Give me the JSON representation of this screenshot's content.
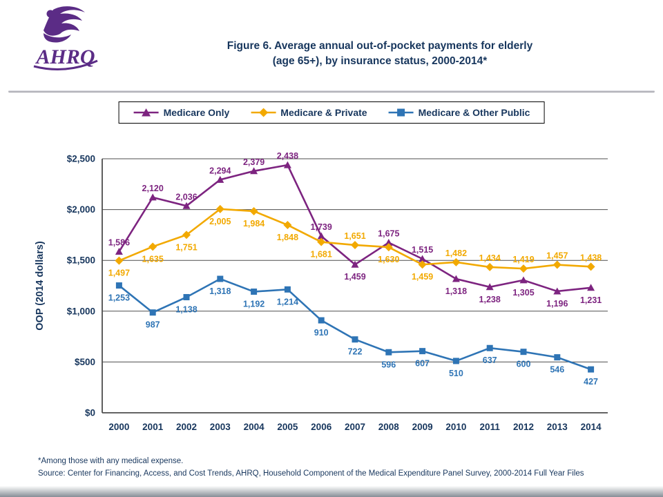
{
  "header": {
    "title_line1": "Figure 6. Average annual out-of-pocket payments for elderly",
    "title_line2": "(age 65+), by insurance status, 2000-2014*",
    "logo_text": "AHRQ"
  },
  "colors": {
    "navy_text": "#17365D",
    "purple_series": "#7D2480",
    "gold_series": "#F2A900",
    "blue_series": "#2E74B5",
    "logo_purple": "#5B2C86"
  },
  "legend": [
    {
      "label": "Medicare Only",
      "marker": "triangle",
      "color": "#7D2480"
    },
    {
      "label": "Medicare & Private",
      "marker": "diamond",
      "color": "#F2A900"
    },
    {
      "label": "Medicare & Other Public",
      "marker": "square",
      "color": "#2E74B5"
    }
  ],
  "chart_data": {
    "type": "line",
    "x": [
      2000,
      2001,
      2002,
      2003,
      2004,
      2005,
      2006,
      2007,
      2008,
      2009,
      2010,
      2011,
      2012,
      2013,
      2014
    ],
    "series": [
      {
        "name": "Medicare Only",
        "marker": "triangle",
        "color": "#7D2480",
        "values": [
          1586,
          2120,
          2036,
          2294,
          2379,
          2438,
          1739,
          1459,
          1675,
          1515,
          1318,
          1238,
          1305,
          1196,
          1231
        ]
      },
      {
        "name": "Medicare & Private",
        "marker": "diamond",
        "color": "#F2A900",
        "values": [
          1497,
          1635,
          1751,
          2005,
          1984,
          1848,
          1681,
          1651,
          1630,
          1459,
          1482,
          1434,
          1419,
          1457,
          1438
        ]
      },
      {
        "name": "Medicare & Other Public",
        "marker": "square",
        "color": "#2E74B5",
        "values": [
          1253,
          987,
          1138,
          1318,
          1192,
          1214,
          910,
          722,
          596,
          607,
          510,
          637,
          600,
          546,
          427
        ]
      }
    ],
    "xlabel": "",
    "ylabel": "OOP (2014 dollars)",
    "ylim": [
      0,
      2500
    ],
    "ytick_step": 500,
    "ytick_labels": [
      "$0",
      "$500",
      "$1,000",
      "$1,500",
      "$2,000",
      "$2,500"
    ],
    "grid": true,
    "legend_position": "top"
  },
  "footnotes": {
    "note": "*Among those with any medical expense.",
    "source": "Source: Center for Financing, Access, and Cost Trends, AHRQ, Household Component of the Medical Expenditure Panel Survey,  2000-2014 Full Year Files"
  }
}
